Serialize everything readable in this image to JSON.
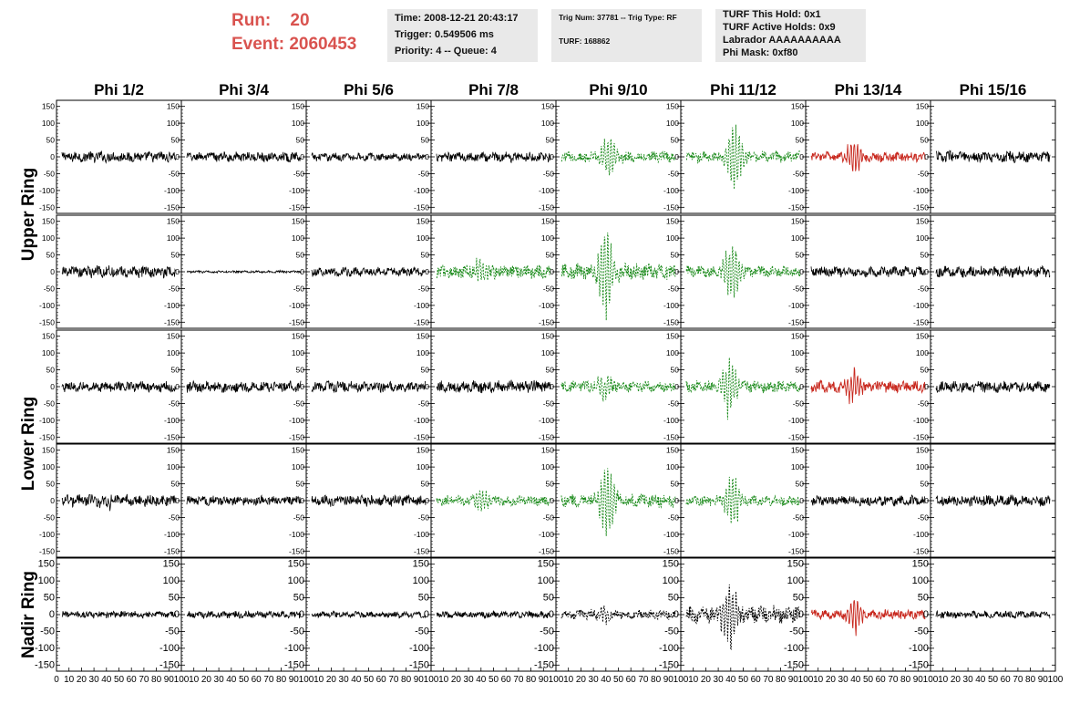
{
  "header": {
    "run_label": "Run:",
    "run_value": "20",
    "event_label": "Event:",
    "event_value": "2060453",
    "time": "Time: 2008-12-21 20:43:17",
    "trigger": "Trigger: 0.549506 ms",
    "priority": "Priority: 4 -- Queue: 4",
    "trig_num": "Trig Num: 37781 -- Trig Type: RF",
    "turf": "TURF: 168862",
    "turf_this_hold": "TURF This Hold: 0x1",
    "turf_active_holds": "TURF Active Holds: 0x9",
    "labrador": "Labrador AAAAAAAAAA",
    "phi_mask": "Phi Mask: 0xf80"
  },
  "colors": {
    "header_red": "#d9534f",
    "normal": "#000000",
    "triggered": "#1a8a1a",
    "masked": "#c8281e",
    "infobox_bg": "#e9e9e9"
  },
  "chart_data": {
    "type": "line",
    "columns": [
      "Phi 1/2",
      "Phi 3/4",
      "Phi 5/6",
      "Phi 7/8",
      "Phi 9/10",
      "Phi 11/12",
      "Phi 13/14",
      "Phi 15/16"
    ],
    "rings": [
      {
        "name": "Upper Ring",
        "rows": 2
      },
      {
        "name": "Lower Ring",
        "rows": 2
      },
      {
        "name": "Nadir Ring",
        "rows": 1
      }
    ],
    "ylim": [
      -160,
      160
    ],
    "y_ticks": [
      -150,
      -100,
      -50,
      0,
      50,
      100,
      150
    ],
    "y_tick_labels": [
      "-150",
      "-100",
      "-50",
      "0",
      "50",
      "100",
      "150"
    ],
    "xlim": [
      0,
      100
    ],
    "x_tick_labels_first": [
      "0",
      "10",
      "20",
      "30",
      "40",
      "50",
      "60",
      "70",
      "80",
      "90",
      "100"
    ],
    "x_tick_labels": [
      "10",
      "20",
      "30",
      "40",
      "50",
      "60",
      "70",
      "80",
      "90",
      "100"
    ],
    "grid": false,
    "panels": [
      {
        "row": 0,
        "col": 0,
        "style": "normal",
        "amp": 14,
        "burst": 0
      },
      {
        "row": 0,
        "col": 1,
        "style": "normal",
        "amp": 12,
        "burst": 0
      },
      {
        "row": 0,
        "col": 2,
        "style": "normal",
        "amp": 10,
        "burst": 0
      },
      {
        "row": 0,
        "col": 3,
        "style": "normal",
        "amp": 13,
        "burst": 0
      },
      {
        "row": 0,
        "col": 4,
        "style": "triggered",
        "amp": 14,
        "burst": 75
      },
      {
        "row": 0,
        "col": 5,
        "style": "triggered",
        "amp": 14,
        "burst": 115
      },
      {
        "row": 0,
        "col": 6,
        "style": "masked",
        "amp": 12,
        "burst": 55
      },
      {
        "row": 0,
        "col": 7,
        "style": "normal",
        "amp": 14,
        "burst": 0
      },
      {
        "row": 1,
        "col": 0,
        "style": "normal",
        "amp": 15,
        "burst": 0
      },
      {
        "row": 1,
        "col": 1,
        "style": "normal",
        "amp": 3,
        "burst": 0
      },
      {
        "row": 1,
        "col": 2,
        "style": "normal",
        "amp": 12,
        "burst": 0
      },
      {
        "row": 1,
        "col": 3,
        "style": "triggered",
        "amp": 17,
        "burst": 40
      },
      {
        "row": 1,
        "col": 4,
        "style": "triggered",
        "amp": 20,
        "burst": 140
      },
      {
        "row": 1,
        "col": 5,
        "style": "triggered",
        "amp": 15,
        "burst": 100
      },
      {
        "row": 1,
        "col": 6,
        "style": "normal",
        "amp": 13,
        "burst": 0
      },
      {
        "row": 1,
        "col": 7,
        "style": "normal",
        "amp": 14,
        "burst": 0
      },
      {
        "row": 2,
        "col": 0,
        "style": "normal",
        "amp": 13,
        "burst": 0
      },
      {
        "row": 2,
        "col": 1,
        "style": "normal",
        "amp": 14,
        "burst": 0
      },
      {
        "row": 2,
        "col": 2,
        "style": "normal",
        "amp": 14,
        "burst": 0
      },
      {
        "row": 2,
        "col": 3,
        "style": "normal",
        "amp": 16,
        "burst": 0
      },
      {
        "row": 2,
        "col": 4,
        "style": "triggered",
        "amp": 14,
        "burst": 40
      },
      {
        "row": 2,
        "col": 5,
        "style": "triggered",
        "amp": 15,
        "burst": 95
      },
      {
        "row": 2,
        "col": 6,
        "style": "masked",
        "amp": 14,
        "burst": 55
      },
      {
        "row": 2,
        "col": 7,
        "style": "normal",
        "amp": 14,
        "burst": 0
      },
      {
        "row": 3,
        "col": 0,
        "style": "normal",
        "amp": 15,
        "burst": 20
      },
      {
        "row": 3,
        "col": 1,
        "style": "normal",
        "amp": 12,
        "burst": 0
      },
      {
        "row": 3,
        "col": 2,
        "style": "normal",
        "amp": 14,
        "burst": 0
      },
      {
        "row": 3,
        "col": 3,
        "style": "triggered",
        "amp": 13,
        "burst": 25
      },
      {
        "row": 3,
        "col": 4,
        "style": "triggered",
        "amp": 17,
        "burst": 125
      },
      {
        "row": 3,
        "col": 5,
        "style": "triggered",
        "amp": 13,
        "burst": 90
      },
      {
        "row": 3,
        "col": 6,
        "style": "normal",
        "amp": 13,
        "burst": 0
      },
      {
        "row": 3,
        "col": 7,
        "style": "normal",
        "amp": 14,
        "burst": 0
      },
      {
        "row": 4,
        "col": 0,
        "style": "normal",
        "amp": 9,
        "burst": 0
      },
      {
        "row": 4,
        "col": 1,
        "style": "normal",
        "amp": 9,
        "burst": 0
      },
      {
        "row": 4,
        "col": 2,
        "style": "normal",
        "amp": 8,
        "burst": 0
      },
      {
        "row": 4,
        "col": 3,
        "style": "normal",
        "amp": 9,
        "burst": 0
      },
      {
        "row": 4,
        "col": 4,
        "style": "nadir-dashed",
        "amp": 12,
        "burst": 25
      },
      {
        "row": 4,
        "col": 5,
        "style": "nadir-dashed",
        "amp": 22,
        "burst": 110
      },
      {
        "row": 4,
        "col": 6,
        "style": "masked",
        "amp": 12,
        "burst": 50
      },
      {
        "row": 4,
        "col": 7,
        "style": "normal",
        "amp": 9,
        "burst": 0
      }
    ]
  }
}
